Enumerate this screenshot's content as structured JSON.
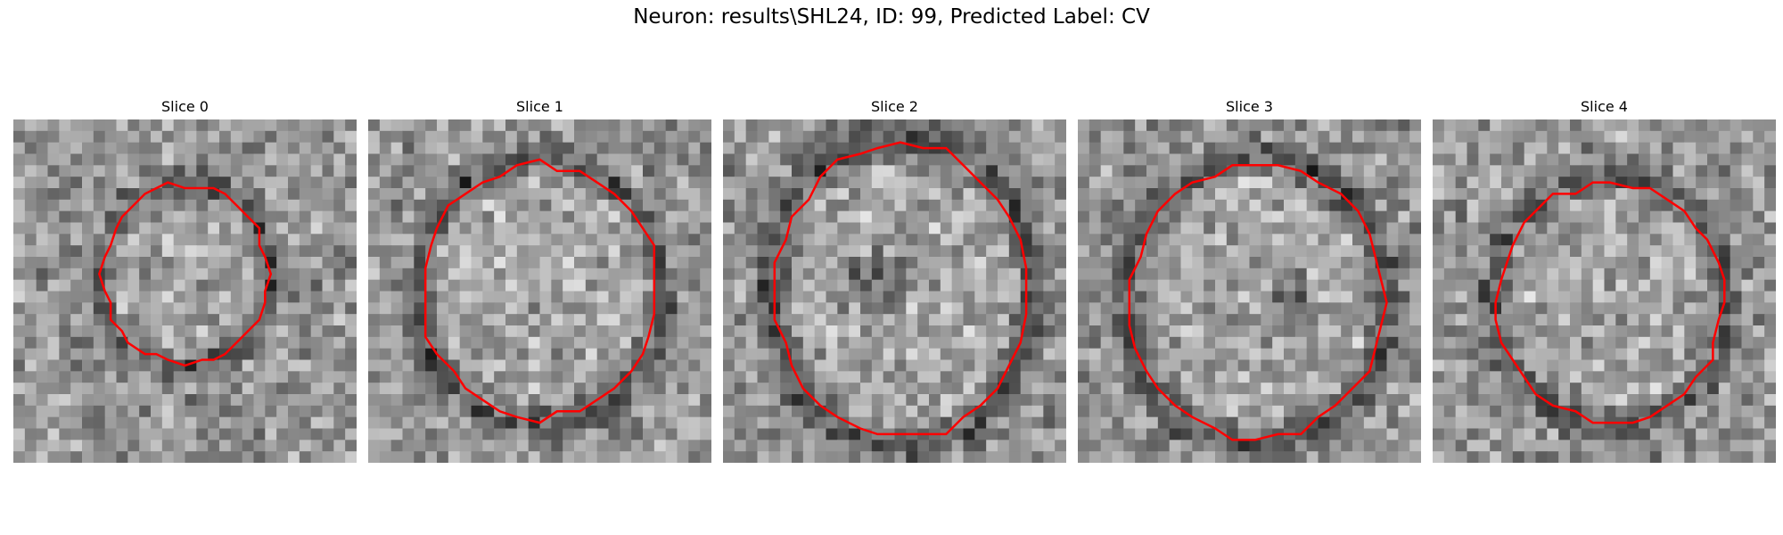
{
  "figure": {
    "suptitle": "Neuron: results\\SHL24, ID: 99, Predicted Label: CV"
  },
  "slices": [
    {
      "title": "Slice 0"
    },
    {
      "title": "Slice 1"
    },
    {
      "title": "Slice 2"
    },
    {
      "title": "Slice 3"
    },
    {
      "title": "Slice 4"
    }
  ],
  "style": {
    "contour_color": "#ff0000",
    "colormap": "gray"
  }
}
